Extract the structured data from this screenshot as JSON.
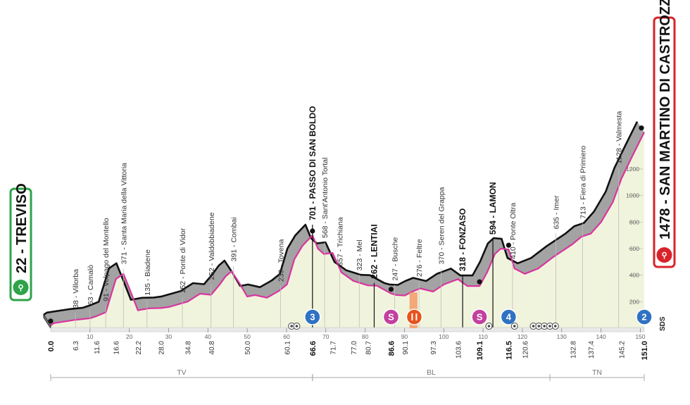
{
  "chart_data": {
    "type": "area",
    "start": {
      "label": "22 - TREVISO",
      "km": "0.0"
    },
    "finish": {
      "label": "1478 - SAN MARTINO DI CASTROZZA",
      "km": "151.0"
    },
    "x": [
      0,
      0.8,
      6.3,
      10,
      11.6,
      14,
      16.6,
      18.5,
      20,
      22.2,
      25,
      28.0,
      30,
      34.8,
      38,
      40.8,
      43,
      44.5,
      46,
      48,
      50.0,
      52,
      55,
      58,
      60.1,
      62,
      64,
      66.6,
      68,
      69.5,
      71.7,
      74,
      77.0,
      80.7,
      83,
      86.6,
      88,
      90.1,
      92,
      94,
      97.3,
      100,
      103.6,
      106,
      109.1,
      111,
      113,
      114.5,
      116.5,
      118,
      120.6,
      124,
      128,
      132.8,
      135,
      137.4,
      140,
      143,
      145.2,
      148,
      151.0
    ],
    "elevation": [
      22,
      38,
      63,
      75,
      91,
      120,
      371,
      410,
      300,
      135,
      150,
      152,
      160,
      200,
      260,
      252,
      330,
      391,
      430,
      340,
      239,
      250,
      230,
      280,
      330,
      520,
      620,
      701,
      600,
      560,
      568,
      420,
      357,
      323,
      320,
      262,
      250,
      247,
      276,
      300,
      276,
      330,
      370,
      318,
      318,
      420,
      560,
      600,
      594,
      450,
      410,
      450,
      540,
      635,
      690,
      713,
      800,
      950,
      1128,
      1300,
      1478
    ],
    "ylim": [
      0,
      1600
    ],
    "y_ticks": [
      "200",
      "400",
      "600",
      "800",
      "1000",
      "1200"
    ],
    "km_labels": [
      {
        "km": 0.0,
        "label": "0.0",
        "bold": true
      },
      {
        "km": 6.3,
        "label": "6.3"
      },
      {
        "km": 11.6,
        "label": "11.6"
      },
      {
        "km": 16.6,
        "label": "16.6"
      },
      {
        "km": 22.2,
        "label": "22.2"
      },
      {
        "km": 28.0,
        "label": "28.0"
      },
      {
        "km": 34.8,
        "label": "34.8"
      },
      {
        "km": 40.8,
        "label": "40.8"
      },
      {
        "km": 50.0,
        "label": "50.0"
      },
      {
        "km": 60.1,
        "label": "60.1"
      },
      {
        "km": 66.6,
        "label": "66.6",
        "bold": true
      },
      {
        "km": 71.7,
        "label": "71.7"
      },
      {
        "km": 77.0,
        "label": "77.0"
      },
      {
        "km": 80.7,
        "label": "80.7"
      },
      {
        "km": 86.6,
        "label": "86.6",
        "bold": true
      },
      {
        "km": 90.1,
        "label": "90.1"
      },
      {
        "km": 97.3,
        "label": "97.3"
      },
      {
        "km": 103.6,
        "label": "103.6"
      },
      {
        "km": 109.1,
        "label": "109.1",
        "bold": true
      },
      {
        "km": 116.5,
        "label": "116.5",
        "bold": true
      },
      {
        "km": 120.6,
        "label": "120.6"
      },
      {
        "km": 132.8,
        "label": "132.8"
      },
      {
        "km": 137.4,
        "label": "137.4"
      },
      {
        "km": 145.2,
        "label": "145.2"
      },
      {
        "km": 151.0,
        "label": "151.0",
        "bold": true
      }
    ],
    "km_ticks": [
      "10",
      "20",
      "30",
      "40",
      "50",
      "60",
      "70",
      "80",
      "90",
      "100",
      "110",
      "120",
      "130",
      "140",
      "150"
    ],
    "waypoints": [
      {
        "km": 6.3,
        "elev": 38,
        "label": "38 - Villorba"
      },
      {
        "km": 10,
        "elev": 63,
        "label": "63 - Camalò"
      },
      {
        "km": 14,
        "elev": 91,
        "label": "91 - Volpago del Montello"
      },
      {
        "km": 18.5,
        "elev": 371,
        "label": "371 - Santa Maria della Vittoria"
      },
      {
        "km": 24.5,
        "elev": 135,
        "label": "135 - Biadene"
      },
      {
        "km": 33.5,
        "elev": 152,
        "label": "152 - Ponte di Vidor"
      },
      {
        "km": 40.8,
        "elev": 252,
        "label": "252 - Valdobbiadene"
      },
      {
        "km": 46.5,
        "elev": 391,
        "label": "391 - Combai"
      },
      {
        "km": 58.5,
        "elev": 239,
        "label": "239 - Tovena"
      },
      {
        "km": 66.6,
        "elev": 701,
        "label": "701 - PASSO DI SAN BOLDO",
        "bold": true
      },
      {
        "km": 69.7,
        "elev": 568,
        "label": "568 - Sant'Antonio Tortal"
      },
      {
        "km": 73.5,
        "elev": 357,
        "label": "357 - Trichiana"
      },
      {
        "km": 78.5,
        "elev": 323,
        "label": "323 - Mel"
      },
      {
        "km": 82.3,
        "elev": 262,
        "label": "262 - LENTIAI",
        "bold": true
      },
      {
        "km": 87.5,
        "elev": 247,
        "label": "247 - Busche"
      },
      {
        "km": 93.7,
        "elev": 276,
        "label": "276 - Feltre"
      },
      {
        "km": 99.3,
        "elev": 370,
        "label": "370 - Seren del Grappa"
      },
      {
        "km": 104.8,
        "elev": 318,
        "label": "318 - FONZASO",
        "bold": true
      },
      {
        "km": 112.5,
        "elev": 594,
        "label": "594 - LAMON",
        "bold": true
      },
      {
        "km": 117.5,
        "elev": 410,
        "label": "410 - Ponte Oltra"
      },
      {
        "km": 128.5,
        "elev": 635,
        "label": "635 - Imer"
      },
      {
        "km": 135.3,
        "elev": 713,
        "label": "713 - Fiera di Primiero"
      },
      {
        "km": 144.5,
        "elev": 1128,
        "label": "1128 - Valmesta"
      }
    ],
    "regions": [
      {
        "label": "TV",
        "from": 0,
        "to": 66.6
      },
      {
        "label": "BL",
        "from": 66.6,
        "to": 127
      },
      {
        "label": "TN",
        "from": 127,
        "to": 151.0
      }
    ],
    "markers": [
      {
        "km": 66.6,
        "type": "climb",
        "label": "3",
        "color": "#2f72c3"
      },
      {
        "km": 86.6,
        "type": "sprint",
        "label": "S",
        "color": "#c2419e"
      },
      {
        "km": 92.5,
        "type": "feed",
        "label": "",
        "color": "#e8521f"
      },
      {
        "km": 109.1,
        "type": "sprint",
        "label": "S",
        "color": "#c2419e"
      },
      {
        "km": 116.5,
        "type": "climb",
        "label": "4",
        "color": "#2f72c3"
      },
      {
        "km": 151.0,
        "type": "climb",
        "label": "2",
        "color": "#2f72c3"
      }
    ],
    "feed_zone": {
      "from": 91.3,
      "to": 93.3
    },
    "sds_label": "SDS",
    "colors": {
      "profile_fill": "#f1f4dc",
      "ridge": "#a3a3a3",
      "pink": "#d8349f",
      "climb": "#2f72c3",
      "sprint": "#c2419e",
      "feed": "#e8521f",
      "badge_start": "#2ea348",
      "badge_finish": "#d8232a"
    }
  }
}
